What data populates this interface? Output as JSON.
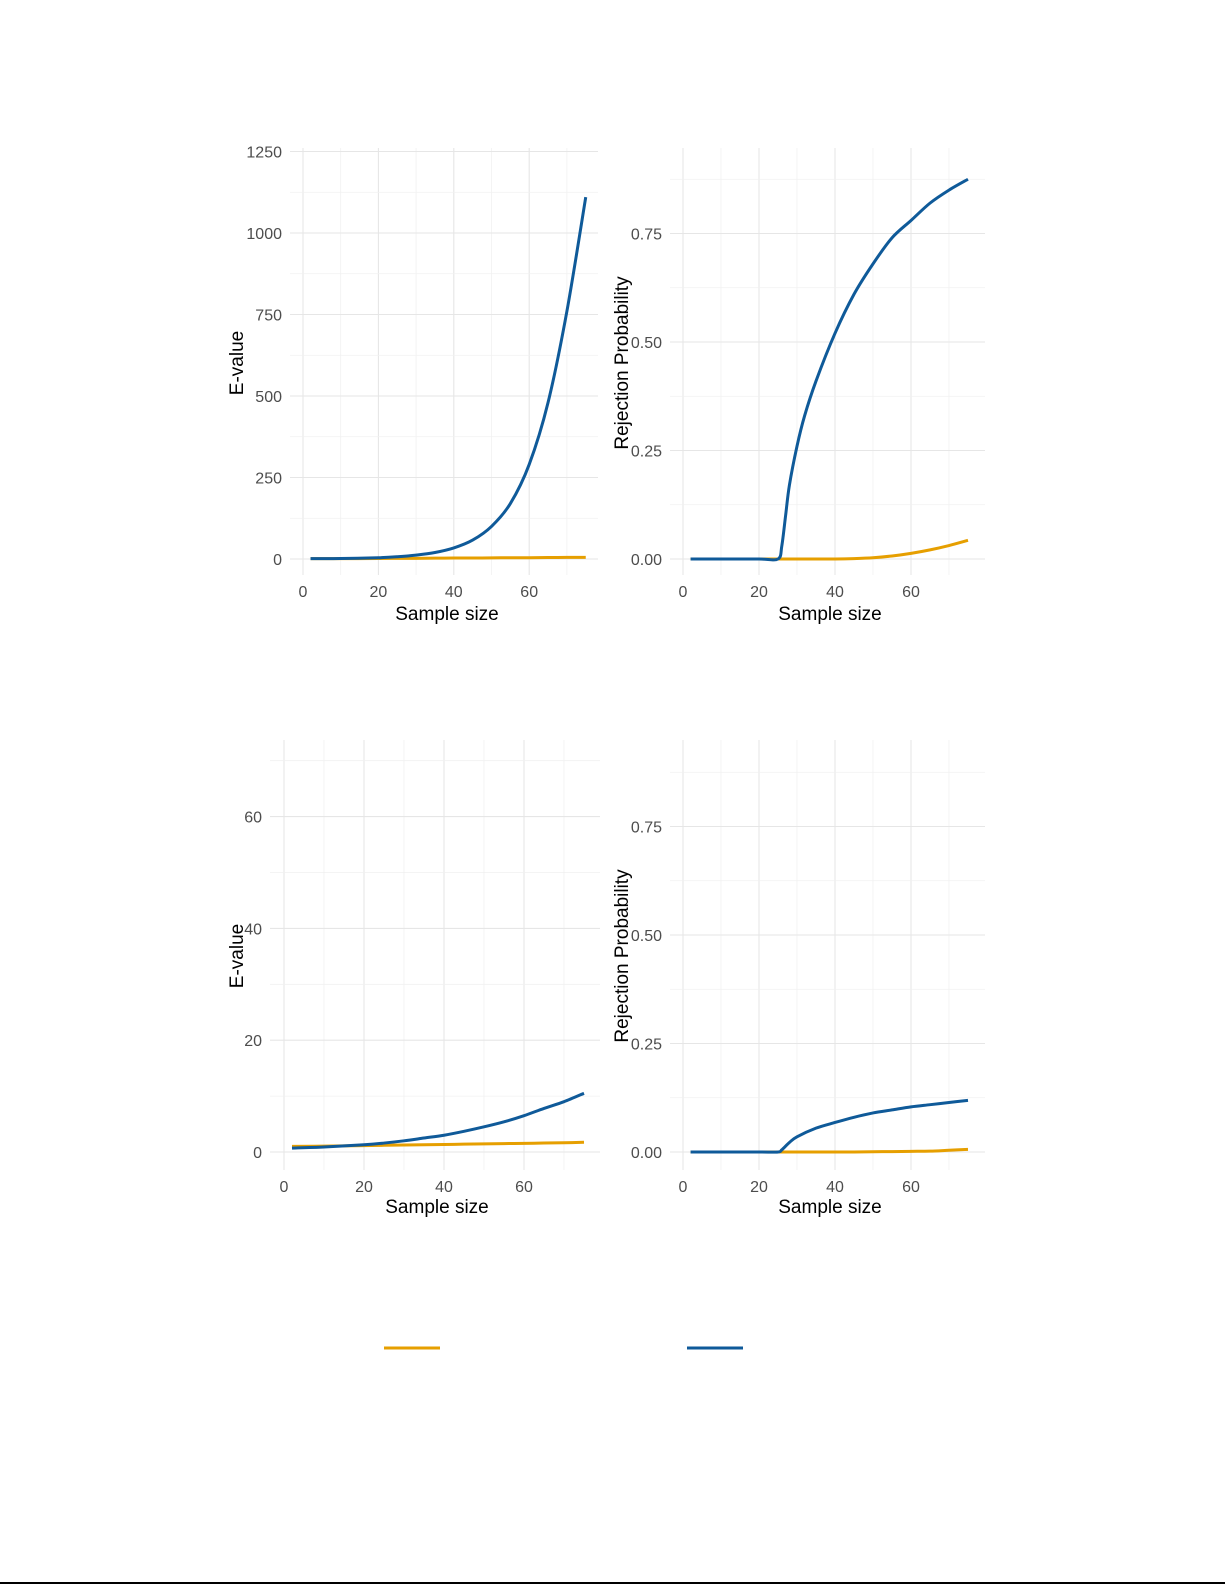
{
  "chart_data": [
    {
      "id": "top-left",
      "type": "line",
      "title": "",
      "xlabel": "Sample size",
      "ylabel": "E-value",
      "xlim": [
        0,
        78
      ],
      "ylim": [
        -50,
        1270
      ],
      "xticks": [
        0,
        20,
        40,
        60
      ],
      "yticks": [
        0,
        250,
        500,
        750,
        1000,
        1250
      ],
      "ytick_labels": [
        "0",
        "250",
        "500",
        "750",
        "1000",
        "1250"
      ],
      "grid": true,
      "x": [
        2,
        10,
        20,
        25,
        30,
        35,
        40,
        45,
        50,
        55,
        60,
        65,
        70,
        75
      ],
      "series": [
        {
          "name": "orange",
          "color": "#E69F00",
          "values": [
            1,
            1,
            1.5,
            2,
            2,
            2.5,
            3,
            3,
            3.5,
            4,
            4,
            4.5,
            5,
            5
          ]
        },
        {
          "name": "blue",
          "color": "#0F5A99",
          "values": [
            1,
            1.5,
            4,
            7,
            12,
            20,
            34,
            58,
            100,
            170,
            290,
            480,
            760,
            1110
          ]
        }
      ]
    },
    {
      "id": "top-right",
      "type": "line",
      "title": "",
      "xlabel": "Sample size",
      "ylabel": "Rejection Probability",
      "xlim": [
        0,
        79
      ],
      "ylim": [
        -0.04,
        0.94
      ],
      "xticks": [
        0,
        20,
        40,
        60
      ],
      "yticks": [
        0.0,
        0.25,
        0.5,
        0.75
      ],
      "ytick_labels": [
        "0.00",
        "0.25",
        "0.50",
        "0.75"
      ],
      "grid": true,
      "x": [
        2,
        10,
        20,
        25,
        26,
        27,
        28,
        30,
        32,
        35,
        40,
        45,
        50,
        55,
        60,
        65,
        70,
        75
      ],
      "series": [
        {
          "name": "orange",
          "color": "#E69F00",
          "values": [
            0,
            0,
            0,
            0,
            0,
            0,
            0,
            0,
            0,
            0,
            0,
            0.001,
            0.003,
            0.007,
            0.013,
            0.021,
            0.031,
            0.043
          ]
        },
        {
          "name": "blue",
          "color": "#0F5A99",
          "values": [
            0,
            0,
            0,
            0,
            0.03,
            0.1,
            0.17,
            0.26,
            0.33,
            0.41,
            0.52,
            0.61,
            0.68,
            0.74,
            0.78,
            0.82,
            0.85,
            0.875
          ]
        }
      ]
    },
    {
      "id": "bottom-left",
      "type": "line",
      "title": "",
      "xlabel": "Sample size",
      "ylabel": "E-value",
      "xlim": [
        0,
        79
      ],
      "ylim": [
        -3,
        73
      ],
      "xticks": [
        0,
        20,
        40,
        60
      ],
      "yticks": [
        0,
        20,
        40,
        60
      ],
      "ytick_labels": [
        "0",
        "20",
        "40",
        "60"
      ],
      "grid": true,
      "x": [
        2,
        10,
        20,
        25,
        30,
        35,
        40,
        45,
        50,
        55,
        60,
        65,
        70,
        75
      ],
      "series": [
        {
          "name": "orange",
          "color": "#E69F00",
          "values": [
            1.0,
            1.05,
            1.15,
            1.2,
            1.25,
            1.3,
            1.35,
            1.4,
            1.45,
            1.5,
            1.55,
            1.6,
            1.65,
            1.75
          ]
        },
        {
          "name": "blue",
          "color": "#0F5A99",
          "values": [
            0.7,
            0.9,
            1.3,
            1.6,
            2.0,
            2.5,
            3.0,
            3.7,
            4.5,
            5.4,
            6.5,
            7.8,
            9.0,
            10.5
          ]
        }
      ]
    },
    {
      "id": "bottom-right",
      "type": "line",
      "title": "",
      "xlabel": "Sample size",
      "ylabel": "Rejection Probability",
      "xlim": [
        0,
        79
      ],
      "ylim": [
        -0.04,
        0.94
      ],
      "xticks": [
        0,
        20,
        40,
        60
      ],
      "yticks": [
        0.0,
        0.25,
        0.5,
        0.75
      ],
      "ytick_labels": [
        "0.00",
        "0.25",
        "0.50",
        "0.75"
      ],
      "grid": true,
      "x": [
        2,
        10,
        20,
        25,
        26,
        28,
        30,
        35,
        40,
        45,
        50,
        55,
        60,
        65,
        70,
        75
      ],
      "series": [
        {
          "name": "orange",
          "color": "#E69F00",
          "values": [
            0,
            0,
            0,
            0,
            0,
            0,
            0,
            0,
            0,
            0,
            0.0005,
            0.001,
            0.0015,
            0.002,
            0.004,
            0.006
          ]
        },
        {
          "name": "blue",
          "color": "#0F5A99",
          "values": [
            0,
            0,
            0,
            0,
            0.005,
            0.022,
            0.035,
            0.055,
            0.068,
            0.08,
            0.09,
            0.097,
            0.104,
            0.109,
            0.114,
            0.119
          ]
        }
      ]
    }
  ],
  "legend": {
    "position": "bottom",
    "entries": [
      {
        "color": "#E69F00",
        "label": ""
      },
      {
        "color": "#0F5A99",
        "label": ""
      }
    ]
  }
}
